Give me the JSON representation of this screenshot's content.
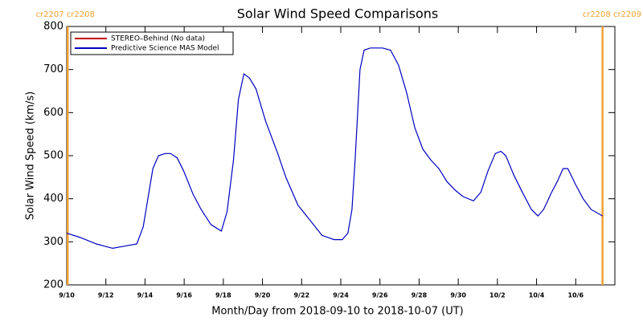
{
  "chart_data": {
    "type": "line",
    "title": "Solar Wind Speed Comparisons",
    "xlabel": "Month/Day from 2018-09-10 to 2018-10-07 (UT)",
    "ylabel": "Solar Wind Speed (km/s)",
    "xlim": [
      0,
      28
    ],
    "ylim": [
      200,
      800
    ],
    "xticks": [
      {
        "value": 0,
        "label": "9/10"
      },
      {
        "value": 2,
        "label": "9/12"
      },
      {
        "value": 4,
        "label": "9/14"
      },
      {
        "value": 6,
        "label": "9/16"
      },
      {
        "value": 8,
        "label": "9/18"
      },
      {
        "value": 10,
        "label": "9/20"
      },
      {
        "value": 12,
        "label": "9/22"
      },
      {
        "value": 14,
        "label": "9/24"
      },
      {
        "value": 16,
        "label": "9/26"
      },
      {
        "value": 18,
        "label": "9/28"
      },
      {
        "value": 20,
        "label": "9/30"
      },
      {
        "value": 22,
        "label": "10/2"
      },
      {
        "value": 24,
        "label": "10/4"
      },
      {
        "value": 26,
        "label": "10/6"
      }
    ],
    "yticks": [
      200,
      300,
      400,
      500,
      600,
      700,
      800
    ],
    "legend": "upper left",
    "markers": [
      {
        "x": 0.05,
        "label": "cr2207 cr2208",
        "color": "#f0a030"
      },
      {
        "x": 27.37,
        "label": "cr2208 cr2209",
        "color": "#f0a030"
      }
    ],
    "x": [
      0,
      0.7,
      1.52,
      2.35,
      2.96,
      3.58,
      3.91,
      4.2,
      4.4,
      4.69,
      5.02,
      5.31,
      5.64,
      5.97,
      6.46,
      6.87,
      7.37,
      7.9,
      8.19,
      8.52,
      8.77,
      9.05,
      9.34,
      9.67,
      10.16,
      10.78,
      11.19,
      11.81,
      12.43,
      13.04,
      13.66,
      14.07,
      14.36,
      14.57,
      14.73,
      14.98,
      15.19,
      15.51,
      16.13,
      16.54,
      16.95,
      17.37,
      17.78,
      18.19,
      18.6,
      19.01,
      19.42,
      19.84,
      20.25,
      20.78,
      21.15,
      21.52,
      21.89,
      22.18,
      22.43,
      22.84,
      23.33,
      23.74,
      24.07,
      24.36,
      24.77,
      25.06,
      25.35,
      25.6,
      25.97,
      26.38,
      26.79,
      27.37
    ],
    "series": [
      {
        "name": "STEREO–Behind (No data)",
        "color": "#c00000"
      },
      {
        "name": "Predictive Science MAS Model",
        "color": "#0000c0",
        "values": [
          320,
          310,
          295,
          285,
          290,
          295,
          335,
          415,
          470,
          500,
          505,
          505,
          495,
          465,
          410,
          375,
          340,
          325,
          370,
          490,
          630,
          690,
          680,
          655,
          580,
          505,
          450,
          385,
          350,
          315,
          305,
          305,
          320,
          375,
          490,
          700,
          745,
          750,
          750,
          745,
          710,
          645,
          565,
          515,
          490,
          470,
          440,
          420,
          405,
          395,
          415,
          465,
          505,
          510,
          500,
          455,
          410,
          375,
          360,
          375,
          415,
          440,
          470,
          470,
          435,
          400,
          375,
          360
        ]
      }
    ]
  }
}
